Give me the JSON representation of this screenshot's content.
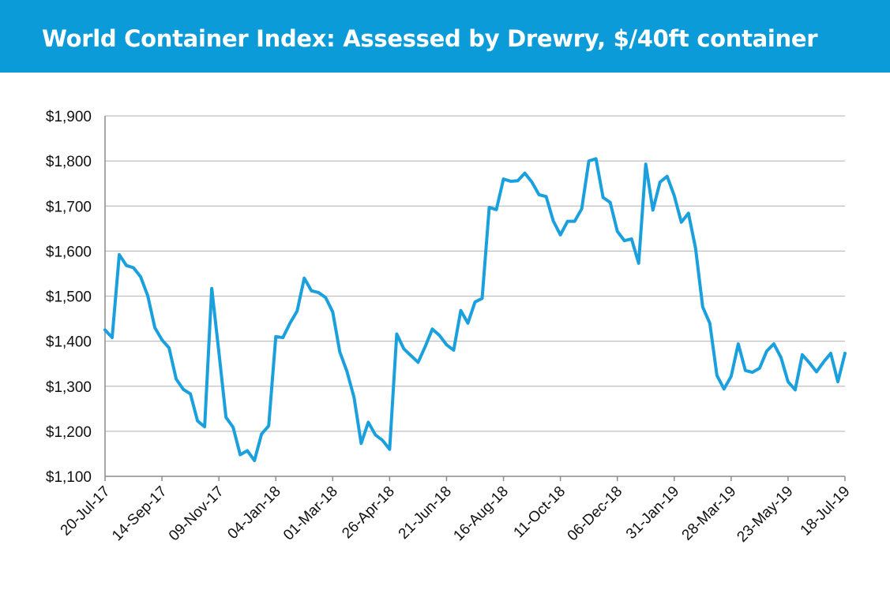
{
  "header": {
    "title": "World Container Index: Assessed by Drewry, $/40ft container"
  },
  "colors": {
    "header_bg": "#0a9bd8",
    "series": "#1aa0dc",
    "grid": "#bfbfbf",
    "axis": "#8c8c8c",
    "text": "#111111"
  },
  "chart_data": {
    "type": "line",
    "title": "",
    "xlabel": "",
    "ylabel": "",
    "ylim": [
      1100,
      1900
    ],
    "y_ticks": [
      "$1,100",
      "$1,200",
      "$1,300",
      "$1,400",
      "$1,500",
      "$1,600",
      "$1,700",
      "$1,800",
      "$1,900"
    ],
    "x_ticks": [
      "20-Jul-17",
      "14-Sep-17",
      "09-Nov-17",
      "04-Jan-18",
      "01-Mar-18",
      "26-Apr-18",
      "21-Jun-18",
      "16-Aug-18",
      "11-Oct-18",
      "06-Dec-18",
      "31-Jan-19",
      "28-Mar-19",
      "23-May-19",
      "18-Jul-19"
    ],
    "x_tick_interval": "8 weeks",
    "grid": true,
    "legend": "none",
    "series": [
      {
        "name": "",
        "frequency": "weekly",
        "start": "20-Jul-17",
        "end": "18-Jul-19",
        "values": [
          1425,
          1408,
          1592,
          1568,
          1563,
          1543,
          1501,
          1430,
          1403,
          1385,
          1316,
          1293,
          1283,
          1223,
          1210,
          1517,
          1376,
          1231,
          1209,
          1148,
          1157,
          1135,
          1194,
          1212,
          1410,
          1408,
          1440,
          1467,
          1540,
          1512,
          1508,
          1497,
          1465,
          1376,
          1333,
          1275,
          1173,
          1220,
          1192,
          1180,
          1160,
          1416,
          1383,
          1368,
          1353,
          1388,
          1427,
          1413,
          1392,
          1380,
          1468,
          1440,
          1487,
          1495,
          1697,
          1692,
          1760,
          1755,
          1756,
          1773,
          1753,
          1725,
          1721,
          1667,
          1636,
          1666,
          1666,
          1694,
          1800,
          1805,
          1719,
          1708,
          1644,
          1623,
          1627,
          1573,
          1793,
          1691,
          1753,
          1766,
          1723,
          1664,
          1684,
          1606,
          1476,
          1440,
          1324,
          1294,
          1322,
          1394,
          1335,
          1331,
          1340,
          1378,
          1394,
          1364,
          1310,
          1292,
          1370,
          1352,
          1332,
          1354,
          1373,
          1310,
          1373
        ]
      }
    ]
  }
}
